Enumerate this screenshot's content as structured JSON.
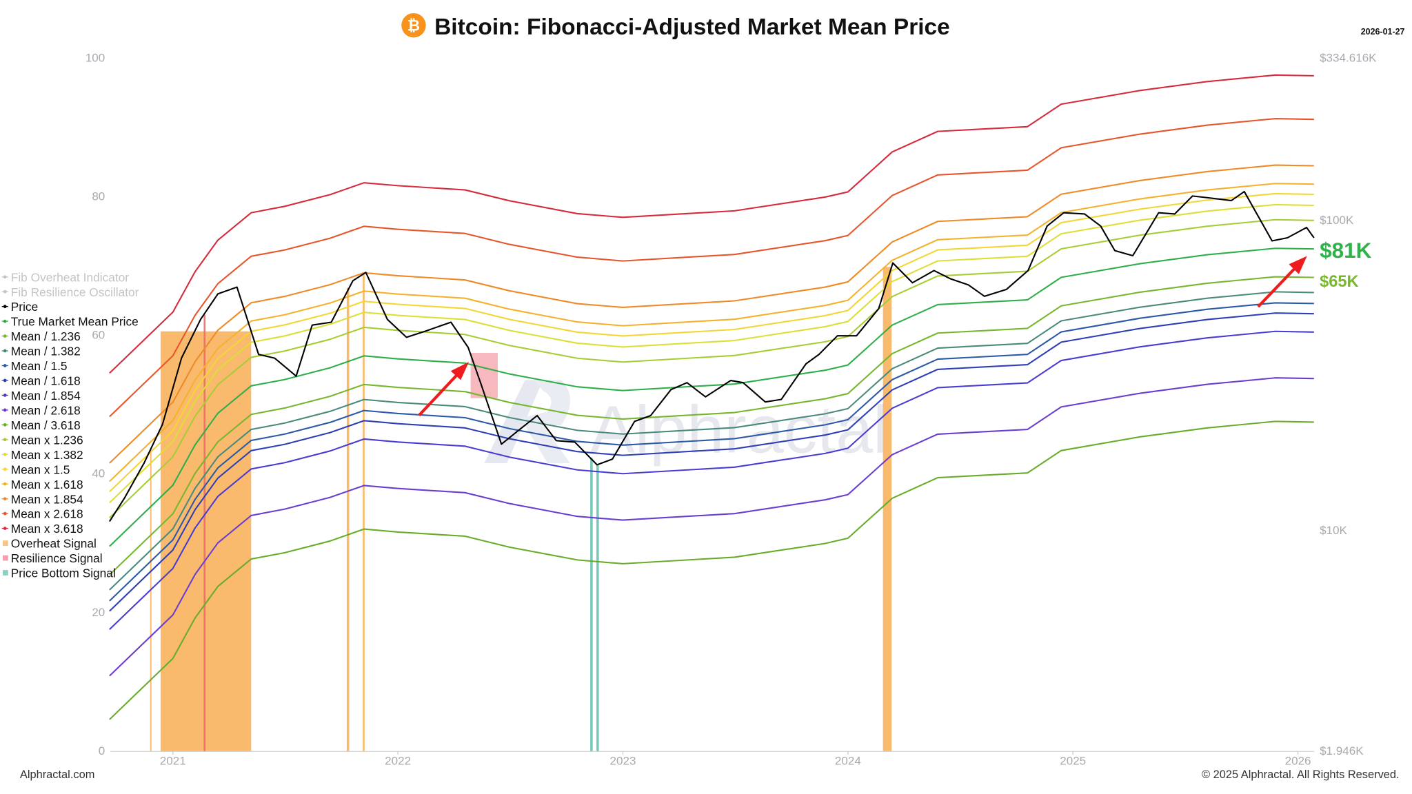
{
  "header": {
    "title": "Bitcoin: Fibonacci-Adjusted Market Mean Price",
    "date": "2026-01-27",
    "icon": "bitcoin-icon"
  },
  "footer": {
    "left": "Alphractal.com",
    "right": "© 2025 Alphractal. All Rights Reserved."
  },
  "watermark": "Alphractal",
  "colors": {
    "price": "#000000",
    "overheat_signal": "#f9a94a",
    "resilience_signal": "#f4a0a8",
    "resilience_line": "#ef6a6a",
    "price_bottom_signal": "#5fbfae",
    "arrow": "#ee1c1c",
    "label_81k": "#2db34a",
    "label_65k": "#79b82e"
  },
  "legend": [
    {
      "label": "Fib Overheat Indicator",
      "color": "#c4c4c8",
      "hidden": true
    },
    {
      "label": "Fib Resilience Oscillator",
      "color": "#c4c4c8",
      "hidden": true
    },
    {
      "label": "Price",
      "color": "#000000"
    },
    {
      "label": "True Market Mean Price",
      "color": "#2fae4b"
    },
    {
      "label": "Mean / 1.236",
      "color": "#76b72f"
    },
    {
      "label": "Mean / 1.382",
      "color": "#4a8a7c"
    },
    {
      "label": "Mean / 1.5",
      "color": "#2c5aa6"
    },
    {
      "label": "Mean / 1.618",
      "color": "#2f3fb5"
    },
    {
      "label": "Mean / 1.854",
      "color": "#4a3cd0"
    },
    {
      "label": "Mean / 2.618",
      "color": "#6a3fd0"
    },
    {
      "label": "Mean / 3.618",
      "color": "#68ad2a"
    },
    {
      "label": "Mean x 1.236",
      "color": "#a8cc34"
    },
    {
      "label": "Mean x 1.382",
      "color": "#dcdf38"
    },
    {
      "label": "Mean x 1.5",
      "color": "#f3d636"
    },
    {
      "label": "Mean x 1.618",
      "color": "#f4b22c"
    },
    {
      "label": "Mean x 1.854",
      "color": "#ef8a26"
    },
    {
      "label": "Mean x 2.618",
      "color": "#e6552c"
    },
    {
      "label": "Mean x 3.618",
      "color": "#d62b3c"
    },
    {
      "label": "Overheat Signal",
      "color": "#f9c68a",
      "square": true
    },
    {
      "label": "Resilience Signal",
      "color": "#f4a0b0",
      "square": true
    },
    {
      "label": "Price Bottom Signal",
      "color": "#8fd0c4",
      "square": true
    }
  ],
  "chart_data": {
    "type": "line",
    "title": "Bitcoin: Fibonacci-Adjusted Market Mean Price",
    "x_ticks": [
      "2021",
      "2022",
      "2023",
      "2024",
      "2025",
      "2026"
    ],
    "left_axis": {
      "range": [
        0,
        100
      ],
      "ticks": [
        "0",
        "20",
        "40",
        "60",
        "80",
        "100"
      ]
    },
    "right_axis": {
      "scale": "log",
      "range_usd_k": [
        1.946,
        334.616
      ],
      "ticks": [
        "$1.946K",
        "$10K",
        "$100K",
        "$334.616K"
      ]
    },
    "grid": false,
    "legend_placement": "left",
    "annotations": {
      "current_mean": "$81K",
      "current_mean_div_1236": "$65K"
    },
    "true_market_mean_usd_k": {
      "dates": [
        "2020-09-20",
        "2021-01-01",
        "2021-02-06",
        "2021-03-15",
        "2021-05-08",
        "2021-07-01",
        "2021-09-13",
        "2021-11-07",
        "2022-01-01",
        "2022-04-20",
        "2022-07-01",
        "2022-10-19",
        "2023-01-01",
        "2023-07-01",
        "2023-11-25",
        "2024-01-01",
        "2024-03-13",
        "2024-05-26",
        "2024-10-19",
        "2024-12-13",
        "2025-04-20",
        "2025-08-07",
        "2025-11-25",
        "2026-01-27"
      ],
      "values": [
        8.9,
        14.0,
        18.9,
        23.9,
        29.3,
        30.7,
        33.5,
        36.6,
        35.8,
        34.7,
        32.0,
        29.1,
        28.3,
        29.7,
        32.9,
        34.2,
        46.0,
        53.6,
        55.5,
        65.6,
        72.6,
        77.6,
        81.4,
        81.0
      ]
    },
    "band_multipliers": [
      {
        "name": "Mean x 3.618",
        "factor": 3.618
      },
      {
        "name": "Mean x 2.618",
        "factor": 2.618
      },
      {
        "name": "Mean x 1.854",
        "factor": 1.854
      },
      {
        "name": "Mean x 1.618",
        "factor": 1.618
      },
      {
        "name": "Mean x 1.5",
        "factor": 1.5
      },
      {
        "name": "Mean x 1.382",
        "factor": 1.382
      },
      {
        "name": "Mean x 1.236",
        "factor": 1.236
      },
      {
        "name": "True Market Mean Price",
        "factor": 1
      },
      {
        "name": "Mean / 1.236",
        "factor": 0.80906
      },
      {
        "name": "Mean / 1.382",
        "factor": 0.72359
      },
      {
        "name": "Mean / 1.5",
        "factor": 0.66667
      },
      {
        "name": "Mean / 1.618",
        "factor": 0.61805
      },
      {
        "name": "Mean / 1.854",
        "factor": 0.53937
      },
      {
        "name": "Mean / 2.618",
        "factor": 0.38197
      },
      {
        "name": "Mean / 3.618",
        "factor": 0.2764
      }
    ],
    "price_usd_k": {
      "dates": [
        "2020-09-20",
        "2020-10-15",
        "2020-11-15",
        "2020-12-15",
        "2021-01-15",
        "2021-02-15",
        "2021-03-15",
        "2021-04-15",
        "2021-05-20",
        "2021-06-15",
        "2021-07-20",
        "2021-08-15",
        "2021-09-15",
        "2021-10-20",
        "2021-11-10",
        "2021-12-15",
        "2022-01-15",
        "2022-02-15",
        "2022-03-28",
        "2022-04-25",
        "2022-05-15",
        "2022-06-18",
        "2022-07-15",
        "2022-08-15",
        "2022-09-15",
        "2022-10-15",
        "2022-11-20",
        "2022-12-15",
        "2023-01-20",
        "2023-02-15",
        "2023-03-20",
        "2023-04-15",
        "2023-05-15",
        "2023-06-25",
        "2023-07-15",
        "2023-08-20",
        "2023-09-15",
        "2023-10-25",
        "2023-11-15",
        "2023-12-15",
        "2024-01-15",
        "2024-02-20",
        "2024-03-14",
        "2024-04-15",
        "2024-05-20",
        "2024-06-15",
        "2024-07-15",
        "2024-08-10",
        "2024-09-15",
        "2024-10-20",
        "2024-11-20",
        "2024-12-17",
        "2025-01-20",
        "2025-02-15",
        "2025-03-10",
        "2025-04-08",
        "2025-05-20",
        "2025-06-15",
        "2025-07-14",
        "2025-08-15",
        "2025-09-15",
        "2025-10-06",
        "2025-11-20",
        "2025-12-15",
        "2026-01-15",
        "2026-01-27"
      ],
      "values": [
        10.7,
        12.8,
        16.5,
        22.0,
        36.0,
        48.0,
        58.0,
        61.0,
        37.0,
        36.0,
        31.5,
        46.0,
        47.0,
        64.0,
        68.0,
        48.0,
        42.0,
        44.0,
        47.0,
        39.0,
        30.0,
        19.0,
        21.0,
        23.5,
        19.5,
        19.3,
        16.3,
        17.0,
        22.5,
        23.5,
        28.5,
        30.0,
        27.0,
        30.5,
        30.0,
        26.0,
        26.5,
        34.5,
        37.0,
        42.5,
        42.5,
        52.0,
        73.0,
        63.0,
        69.0,
        65.0,
        62.0,
        57.0,
        60.0,
        69.0,
        96.0,
        106.0,
        105.0,
        96.0,
        80.0,
        77.0,
        106.0,
        105.0,
        120.0,
        118.0,
        116.0,
        124.0,
        86.0,
        88.0,
        95.0,
        88.0
      ]
    },
    "overheat_signal_periods": [
      [
        "2020-11-25",
        "2020-11-27"
      ],
      [
        "2020-12-12",
        "2021-05-08"
      ],
      [
        "2021-10-10",
        "2021-10-14"
      ],
      [
        "2021-11-05",
        "2021-11-08"
      ],
      [
        "2024-02-27",
        "2024-03-12"
      ]
    ],
    "resilience_signal_periods": [
      [
        "2021-02-20",
        "2021-02-23"
      ],
      [
        "2022-04-29",
        "2022-06-12"
      ]
    ],
    "price_bottom_signal_periods": [
      [
        "2022-11-09",
        "2022-11-13"
      ],
      [
        "2022-11-19",
        "2022-11-23"
      ]
    ]
  }
}
